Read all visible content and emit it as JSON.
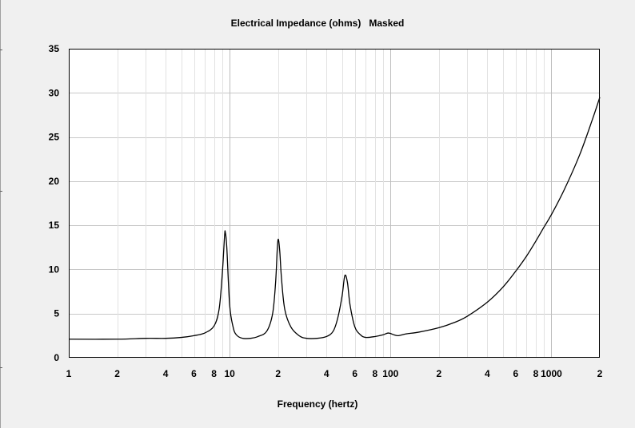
{
  "chart_data": {
    "type": "line",
    "title": "Electrical Impedance (ohms)   Masked",
    "xlabel": "Frequency (hertz)",
    "ylabel": "",
    "x_scale": "log",
    "xlim": [
      1,
      2000
    ],
    "ylim": [
      0,
      35
    ],
    "grid": true,
    "y_ticks": [
      0,
      5,
      10,
      15,
      20,
      25,
      30,
      35
    ],
    "x_tick_labels": [
      {
        "x": 1,
        "label": "1"
      },
      {
        "x": 2,
        "label": "2"
      },
      {
        "x": 4,
        "label": "4"
      },
      {
        "x": 6,
        "label": "6"
      },
      {
        "x": 8,
        "label": "8"
      },
      {
        "x": 10,
        "label": "10"
      },
      {
        "x": 20,
        "label": "2"
      },
      {
        "x": 40,
        "label": "4"
      },
      {
        "x": 60,
        "label": "6"
      },
      {
        "x": 80,
        "label": "8"
      },
      {
        "x": 100,
        "label": "100"
      },
      {
        "x": 200,
        "label": "2"
      },
      {
        "x": 400,
        "label": "4"
      },
      {
        "x": 600,
        "label": "6"
      },
      {
        "x": 800,
        "label": "8"
      },
      {
        "x": 1000,
        "label": "1000"
      },
      {
        "x": 2000,
        "label": "2"
      }
    ],
    "series": [
      {
        "color": "#000000",
        "points": [
          [
            1,
            2.1
          ],
          [
            2,
            2.1
          ],
          [
            3,
            2.2
          ],
          [
            4,
            2.2
          ],
          [
            5,
            2.3
          ],
          [
            6,
            2.5
          ],
          [
            7,
            2.8
          ],
          [
            8,
            3.6
          ],
          [
            8.6,
            5.5
          ],
          [
            9.0,
            9.5
          ],
          [
            9.3,
            13.8
          ],
          [
            9.4,
            14.2
          ],
          [
            9.6,
            12.5
          ],
          [
            10,
            6.0
          ],
          [
            10.5,
            3.5
          ],
          [
            11,
            2.6
          ],
          [
            12,
            2.2
          ],
          [
            13.5,
            2.2
          ],
          [
            15,
            2.4
          ],
          [
            17,
            3.0
          ],
          [
            18.5,
            5.0
          ],
          [
            19.3,
            8.5
          ],
          [
            19.8,
            12.5
          ],
          [
            20.1,
            13.4
          ],
          [
            20.5,
            12.0
          ],
          [
            21,
            9.0
          ],
          [
            22,
            5.5
          ],
          [
            24,
            3.5
          ],
          [
            27,
            2.5
          ],
          [
            30,
            2.2
          ],
          [
            35,
            2.2
          ],
          [
            40,
            2.4
          ],
          [
            44,
            3.0
          ],
          [
            47,
            4.5
          ],
          [
            50,
            7.0
          ],
          [
            52,
            9.3
          ],
          [
            54,
            8.5
          ],
          [
            56,
            6.0
          ],
          [
            60,
            3.5
          ],
          [
            65,
            2.6
          ],
          [
            70,
            2.3
          ],
          [
            80,
            2.4
          ],
          [
            90,
            2.6
          ],
          [
            97,
            2.8
          ],
          [
            105,
            2.6
          ],
          [
            112,
            2.5
          ],
          [
            125,
            2.7
          ],
          [
            150,
            2.9
          ],
          [
            200,
            3.4
          ],
          [
            250,
            4.0
          ],
          [
            300,
            4.7
          ],
          [
            400,
            6.3
          ],
          [
            500,
            8.0
          ],
          [
            600,
            9.8
          ],
          [
            700,
            11.5
          ],
          [
            800,
            13.2
          ],
          [
            900,
            14.8
          ],
          [
            1000,
            16.2
          ],
          [
            1200,
            19.0
          ],
          [
            1500,
            23.0
          ],
          [
            1800,
            27.0
          ],
          [
            2000,
            29.5
          ]
        ]
      }
    ]
  }
}
